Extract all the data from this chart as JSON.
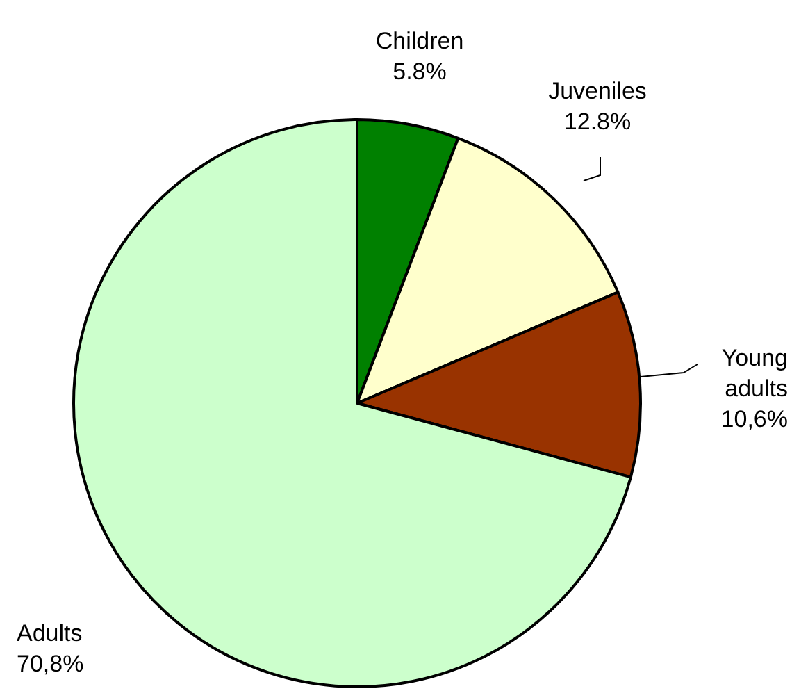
{
  "chart_data": {
    "type": "pie",
    "categories": [
      "Children",
      "Juveniles",
      "Young adults",
      "Adults"
    ],
    "values": [
      5.8,
      12.8,
      10.6,
      70.8
    ],
    "colors": [
      "#008000",
      "#ffffcc",
      "#993300",
      "#ccffcc"
    ],
    "value_labels": [
      "5.8%",
      "12.8%",
      "10,6%",
      "70,8%"
    ]
  }
}
